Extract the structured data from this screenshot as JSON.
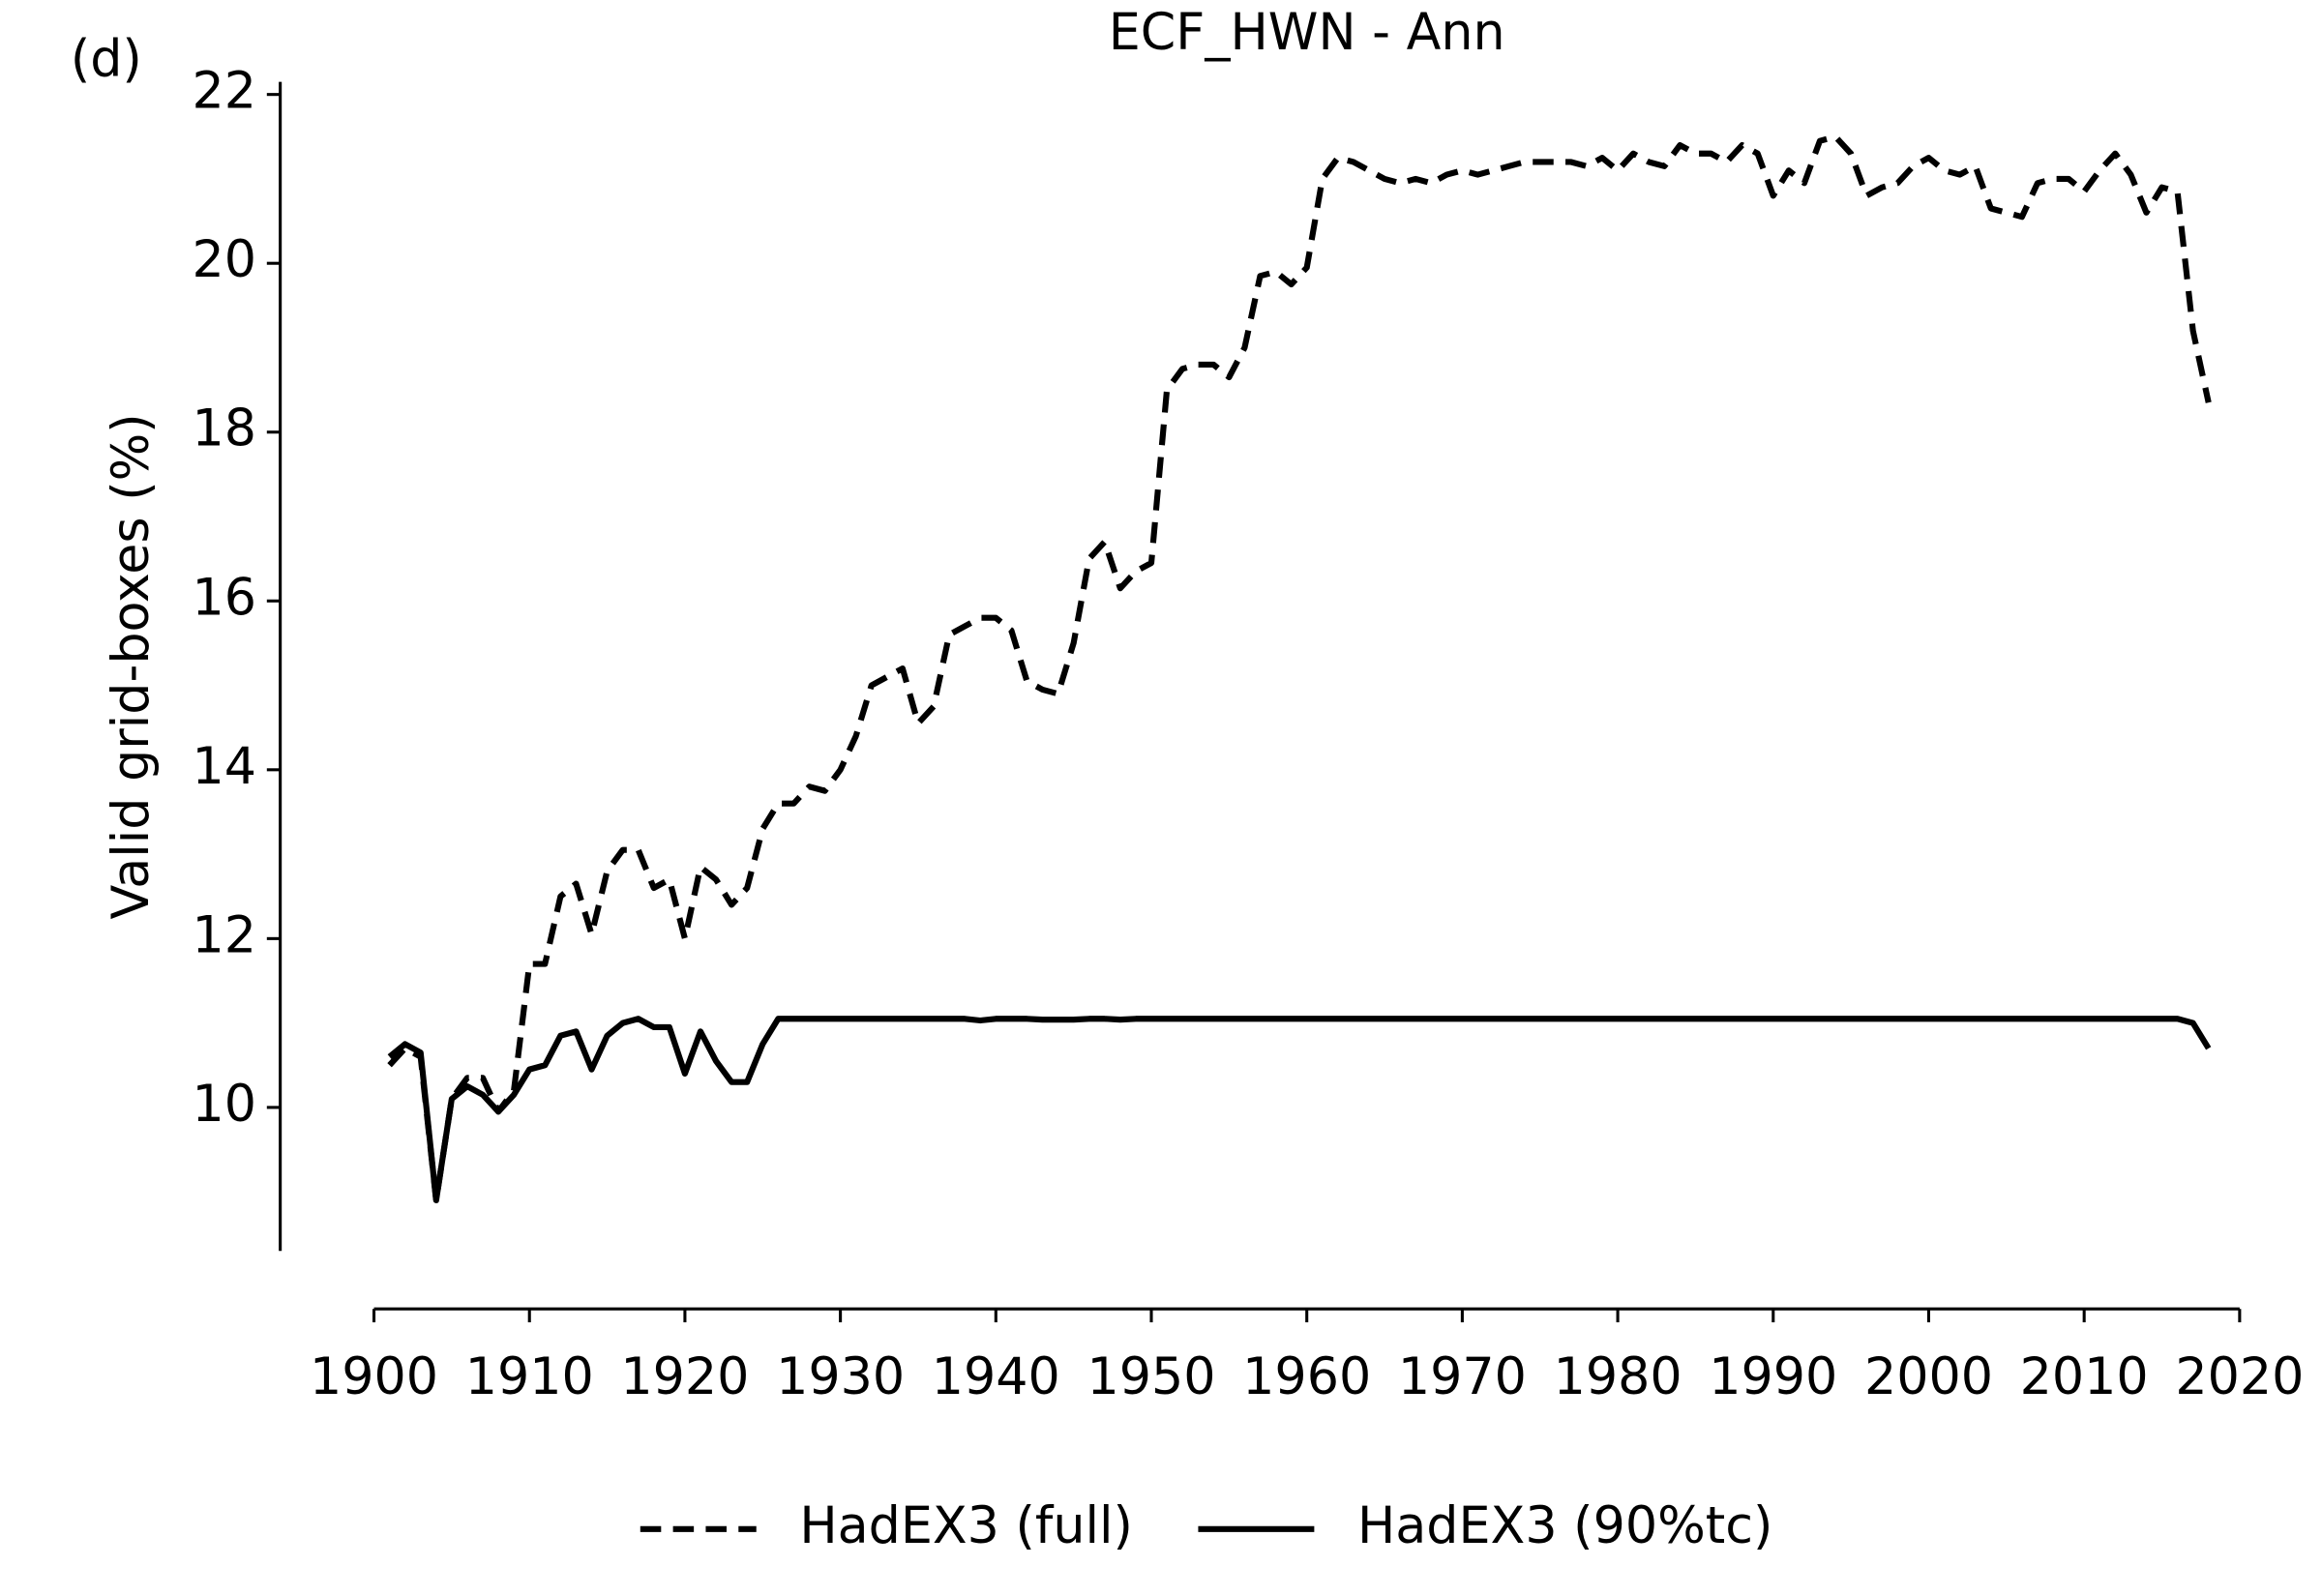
{
  "chart_data": {
    "type": "line",
    "title": "ECF_HWN - Ann",
    "panel_label": "(d)",
    "y_label": "Valid grid-boxes (%)",
    "x": [
      1901,
      1902,
      1903,
      1904,
      1905,
      1906,
      1907,
      1908,
      1909,
      1910,
      1911,
      1912,
      1913,
      1914,
      1915,
      1916,
      1917,
      1918,
      1919,
      1920,
      1921,
      1922,
      1923,
      1924,
      1925,
      1926,
      1927,
      1928,
      1929,
      1930,
      1931,
      1932,
      1933,
      1934,
      1935,
      1936,
      1937,
      1938,
      1939,
      1940,
      1941,
      1942,
      1943,
      1944,
      1945,
      1946,
      1947,
      1948,
      1949,
      1950,
      1951,
      1952,
      1953,
      1954,
      1955,
      1956,
      1957,
      1958,
      1959,
      1960,
      1961,
      1962,
      1963,
      1964,
      1965,
      1966,
      1967,
      1968,
      1969,
      1970,
      1971,
      1972,
      1973,
      1974,
      1975,
      1976,
      1977,
      1978,
      1979,
      1980,
      1981,
      1982,
      1983,
      1984,
      1985,
      1986,
      1987,
      1988,
      1989,
      1990,
      1991,
      1992,
      1993,
      1994,
      1995,
      1996,
      1997,
      1998,
      1999,
      2000,
      2001,
      2002,
      2003,
      2004,
      2005,
      2006,
      2007,
      2008,
      2009,
      2010,
      2011,
      2012,
      2013,
      2014,
      2015,
      2016,
      2017,
      2018
    ],
    "series": [
      {
        "name": "HadEX3 (full)",
        "color": "#000000",
        "style": "dashed",
        "values": [
          10.5,
          10.7,
          10.6,
          8.9,
          10.1,
          10.35,
          10.35,
          9.95,
          10.2,
          11.7,
          11.7,
          12.5,
          12.65,
          12.05,
          12.8,
          13.05,
          13.05,
          12.6,
          12.7,
          12.0,
          12.85,
          12.7,
          12.4,
          12.6,
          13.3,
          13.6,
          13.6,
          13.8,
          13.75,
          14.0,
          14.4,
          15.0,
          15.1,
          15.2,
          14.55,
          14.75,
          15.6,
          15.7,
          15.8,
          15.8,
          15.65,
          15.05,
          14.95,
          14.9,
          15.5,
          16.5,
          16.7,
          16.15,
          16.35,
          16.45,
          18.5,
          18.75,
          18.8,
          18.8,
          18.65,
          19.0,
          19.85,
          19.9,
          19.75,
          19.95,
          21.0,
          21.25,
          21.2,
          21.1,
          21.0,
          20.95,
          21.0,
          20.95,
          21.05,
          21.1,
          21.05,
          21.1,
          21.15,
          21.2,
          21.2,
          21.2,
          21.2,
          21.15,
          21.25,
          21.1,
          21.3,
          21.2,
          21.15,
          21.4,
          21.3,
          21.3,
          21.2,
          21.4,
          21.3,
          20.8,
          21.1,
          20.95,
          21.45,
          21.5,
          21.3,
          20.8,
          20.9,
          20.95,
          21.15,
          21.25,
          21.1,
          21.05,
          21.15,
          20.65,
          20.6,
          20.55,
          20.95,
          21.0,
          21.0,
          20.85,
          21.1,
          21.3,
          21.05,
          20.6,
          20.9,
          20.85,
          19.2,
          18.35
        ]
      },
      {
        "name": "HadEX3 (90%tc)",
        "color": "#000000",
        "style": "solid",
        "values": [
          10.6,
          10.75,
          10.65,
          8.9,
          10.1,
          10.25,
          10.15,
          9.95,
          10.15,
          10.45,
          10.5,
          10.85,
          10.9,
          10.45,
          10.85,
          11.0,
          11.05,
          10.95,
          10.95,
          10.4,
          10.9,
          10.55,
          10.3,
          10.3,
          10.75,
          11.05,
          11.05,
          11.05,
          11.05,
          11.05,
          11.05,
          11.05,
          11.05,
          11.05,
          11.05,
          11.05,
          11.05,
          11.05,
          11.03,
          11.05,
          11.05,
          11.05,
          11.04,
          11.04,
          11.04,
          11.05,
          11.05,
          11.04,
          11.05,
          11.05,
          11.05,
          11.05,
          11.05,
          11.05,
          11.05,
          11.05,
          11.05,
          11.05,
          11.05,
          11.05,
          11.05,
          11.05,
          11.05,
          11.05,
          11.05,
          11.05,
          11.05,
          11.05,
          11.05,
          11.05,
          11.05,
          11.05,
          11.05,
          11.05,
          11.05,
          11.05,
          11.05,
          11.05,
          11.05,
          11.05,
          11.05,
          11.05,
          11.05,
          11.05,
          11.05,
          11.05,
          11.05,
          11.05,
          11.05,
          11.05,
          11.05,
          11.05,
          11.05,
          11.05,
          11.05,
          11.05,
          11.05,
          11.05,
          11.05,
          11.05,
          11.05,
          11.05,
          11.05,
          11.05,
          11.05,
          11.05,
          11.05,
          11.05,
          11.05,
          11.05,
          11.05,
          11.05,
          11.05,
          11.05,
          11.05,
          11.05,
          11.0,
          10.7
        ]
      }
    ],
    "xlim": [
      1900,
      2020
    ],
    "ylim": [
      8.3,
      22.15
    ],
    "xticks": [
      1900,
      1910,
      1920,
      1930,
      1940,
      1950,
      1960,
      1970,
      1980,
      1990,
      2000,
      2010,
      2020
    ],
    "yticks": [
      10,
      12,
      14,
      16,
      18,
      20,
      22
    ],
    "legend": "bottom"
  }
}
